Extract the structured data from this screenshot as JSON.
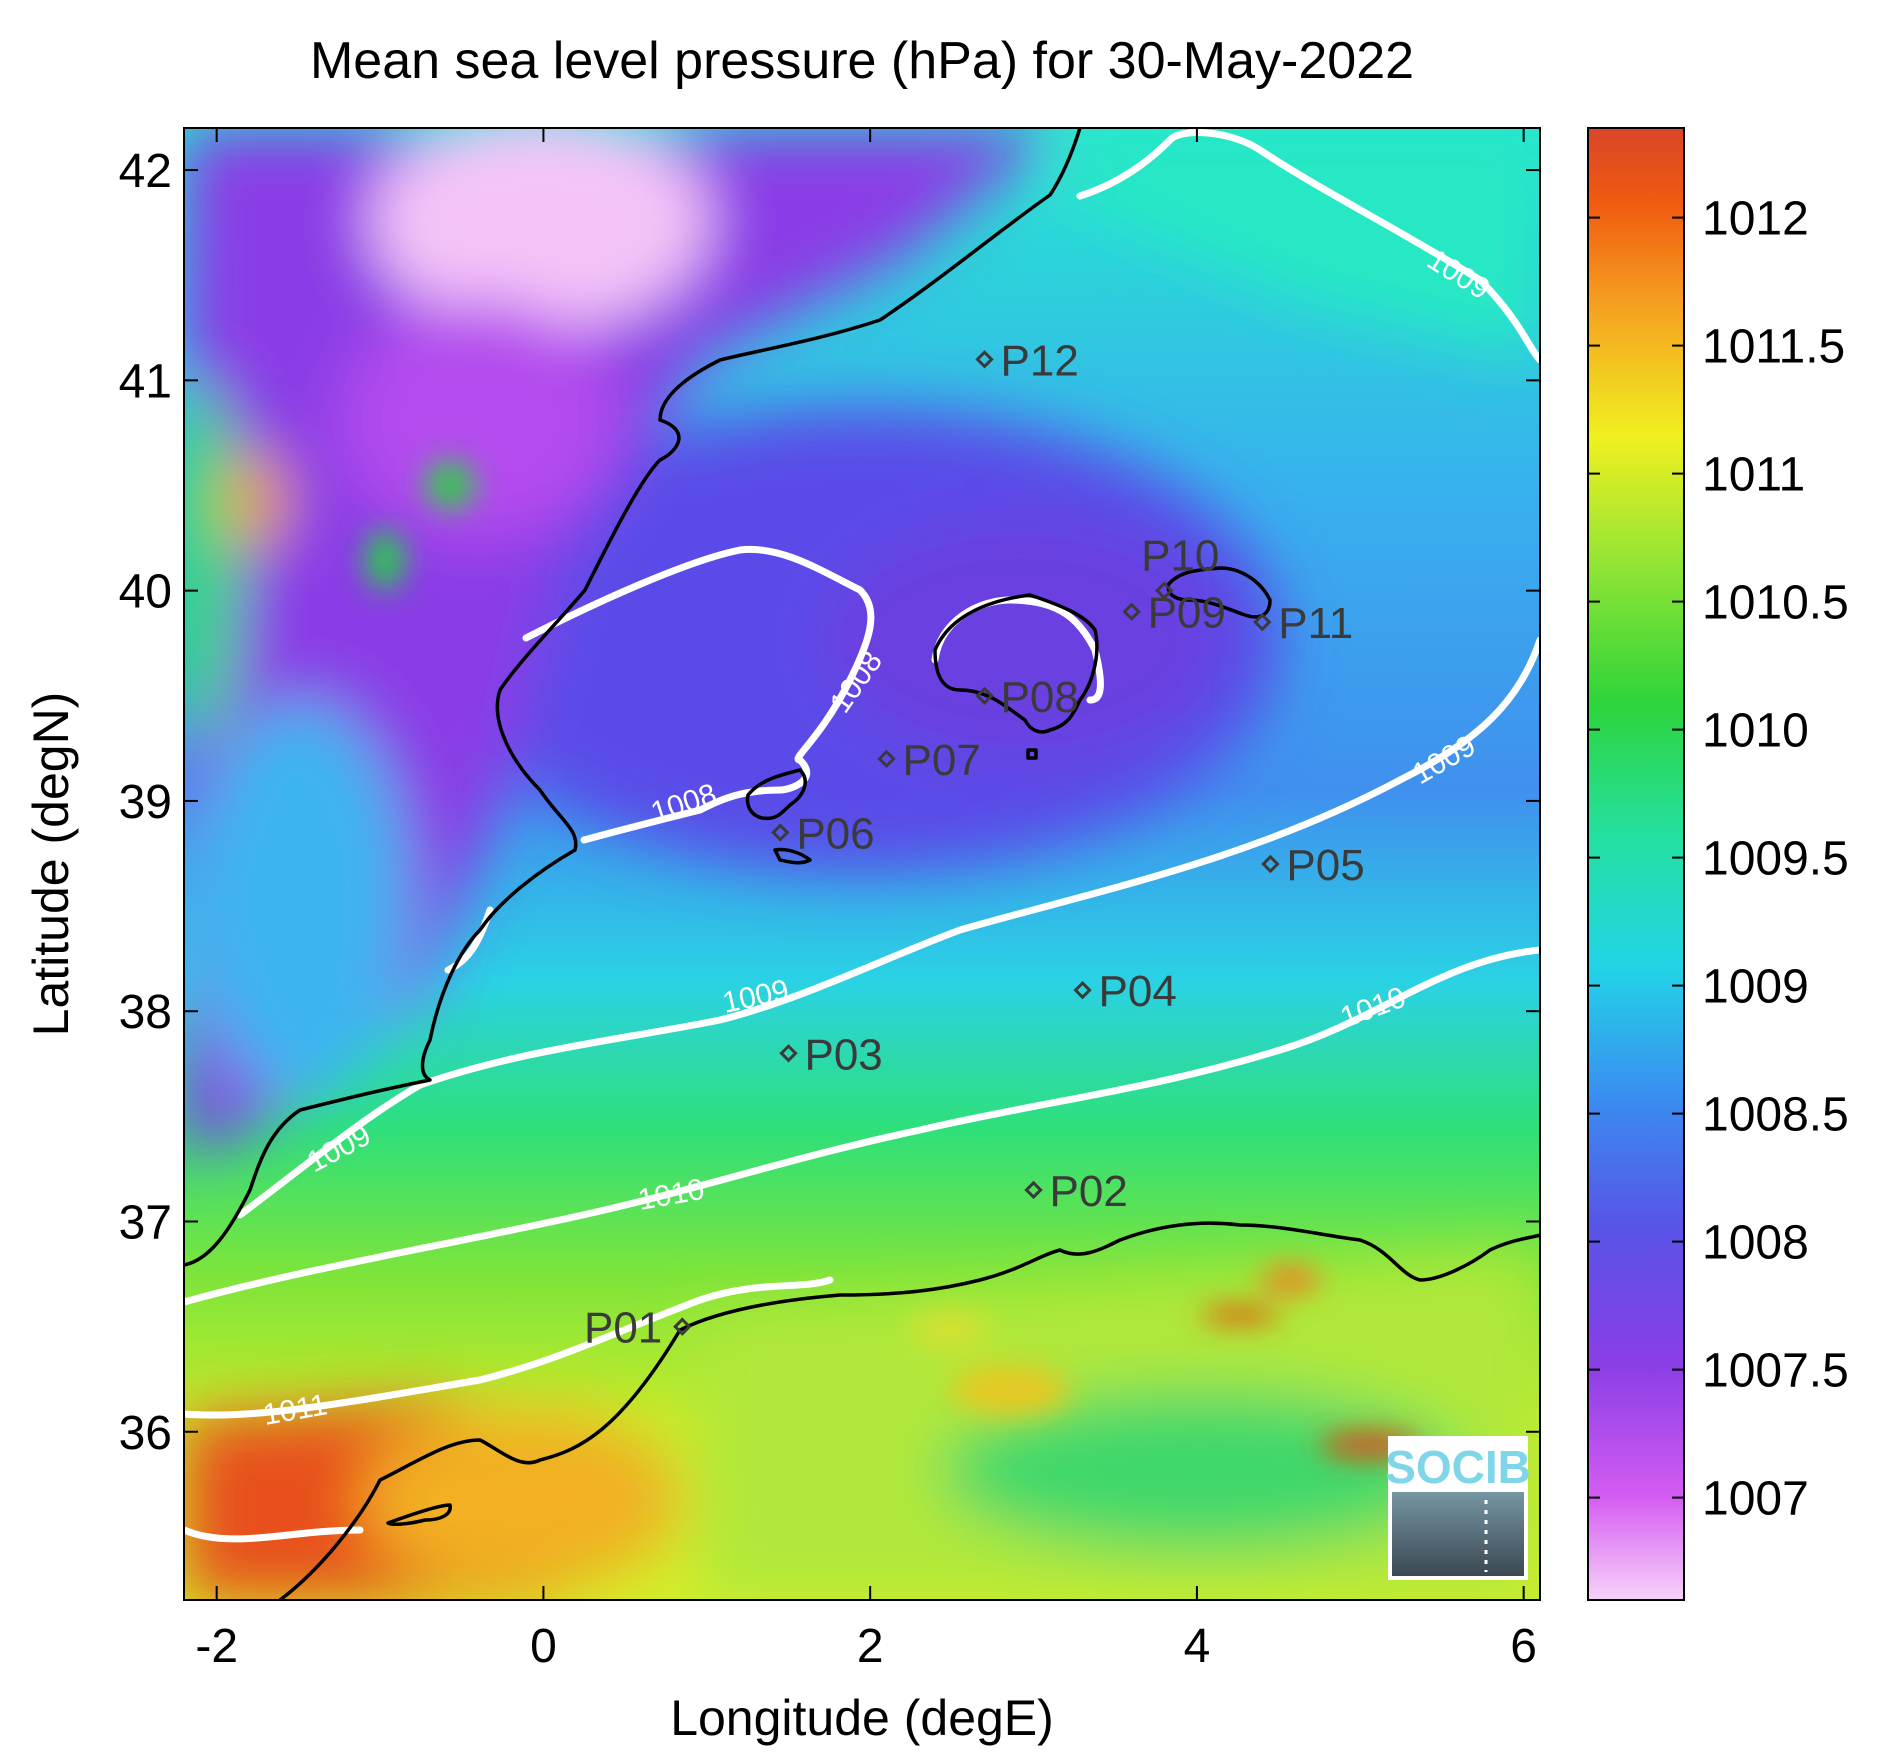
{
  "title": "Mean sea level pressure (hPa) for 30-May-2022",
  "x_axis": {
    "label": "Longitude (degE)",
    "ticks": [
      -2,
      0,
      2,
      4,
      6
    ],
    "range": [
      -2.2,
      6.1
    ]
  },
  "y_axis": {
    "label": "Latitude (degN)",
    "ticks": [
      36,
      37,
      38,
      39,
      40,
      41,
      42
    ],
    "range": [
      35.2,
      42.2
    ]
  },
  "colorbar": {
    "ticks": [
      "1007",
      "1007.5",
      "1008",
      "1008.5",
      "1009",
      "1009.5",
      "1010",
      "1010.5",
      "1011",
      "1011.5",
      "1012"
    ],
    "range": [
      1006.6,
      1012.35
    ],
    "colors": [
      "#f3c4f6",
      "#c24ef0",
      "#6a3fe0",
      "#3a7cf0",
      "#1fe0d8",
      "#2bd86a",
      "#2fd63a",
      "#9be636",
      "#f0f020",
      "#f5a020",
      "#e04020"
    ]
  },
  "points": [
    {
      "name": "P01",
      "lon": 0.85,
      "lat": 36.5
    },
    {
      "name": "P02",
      "lon": 3.0,
      "lat": 37.15
    },
    {
      "name": "P03",
      "lon": 1.5,
      "lat": 37.8
    },
    {
      "name": "P04",
      "lon": 3.3,
      "lat": 38.1
    },
    {
      "name": "P05",
      "lon": 4.45,
      "lat": 38.7
    },
    {
      "name": "P06",
      "lon": 1.45,
      "lat": 38.85
    },
    {
      "name": "P07",
      "lon": 2.1,
      "lat": 39.2
    },
    {
      "name": "P08",
      "lon": 2.7,
      "lat": 39.5
    },
    {
      "name": "P09",
      "lon": 3.6,
      "lat": 39.9
    },
    {
      "name": "P10",
      "lon": 3.8,
      "lat": 40.0
    },
    {
      "name": "P11",
      "lon": 4.4,
      "lat": 39.85
    },
    {
      "name": "P12",
      "lon": 2.7,
      "lat": 41.1
    }
  ],
  "contour_labels": [
    "1008",
    "1008",
    "1009",
    "1009",
    "1009",
    "1009",
    "1010",
    "1010",
    "1011"
  ],
  "logo": {
    "text": "SOCIB"
  }
}
